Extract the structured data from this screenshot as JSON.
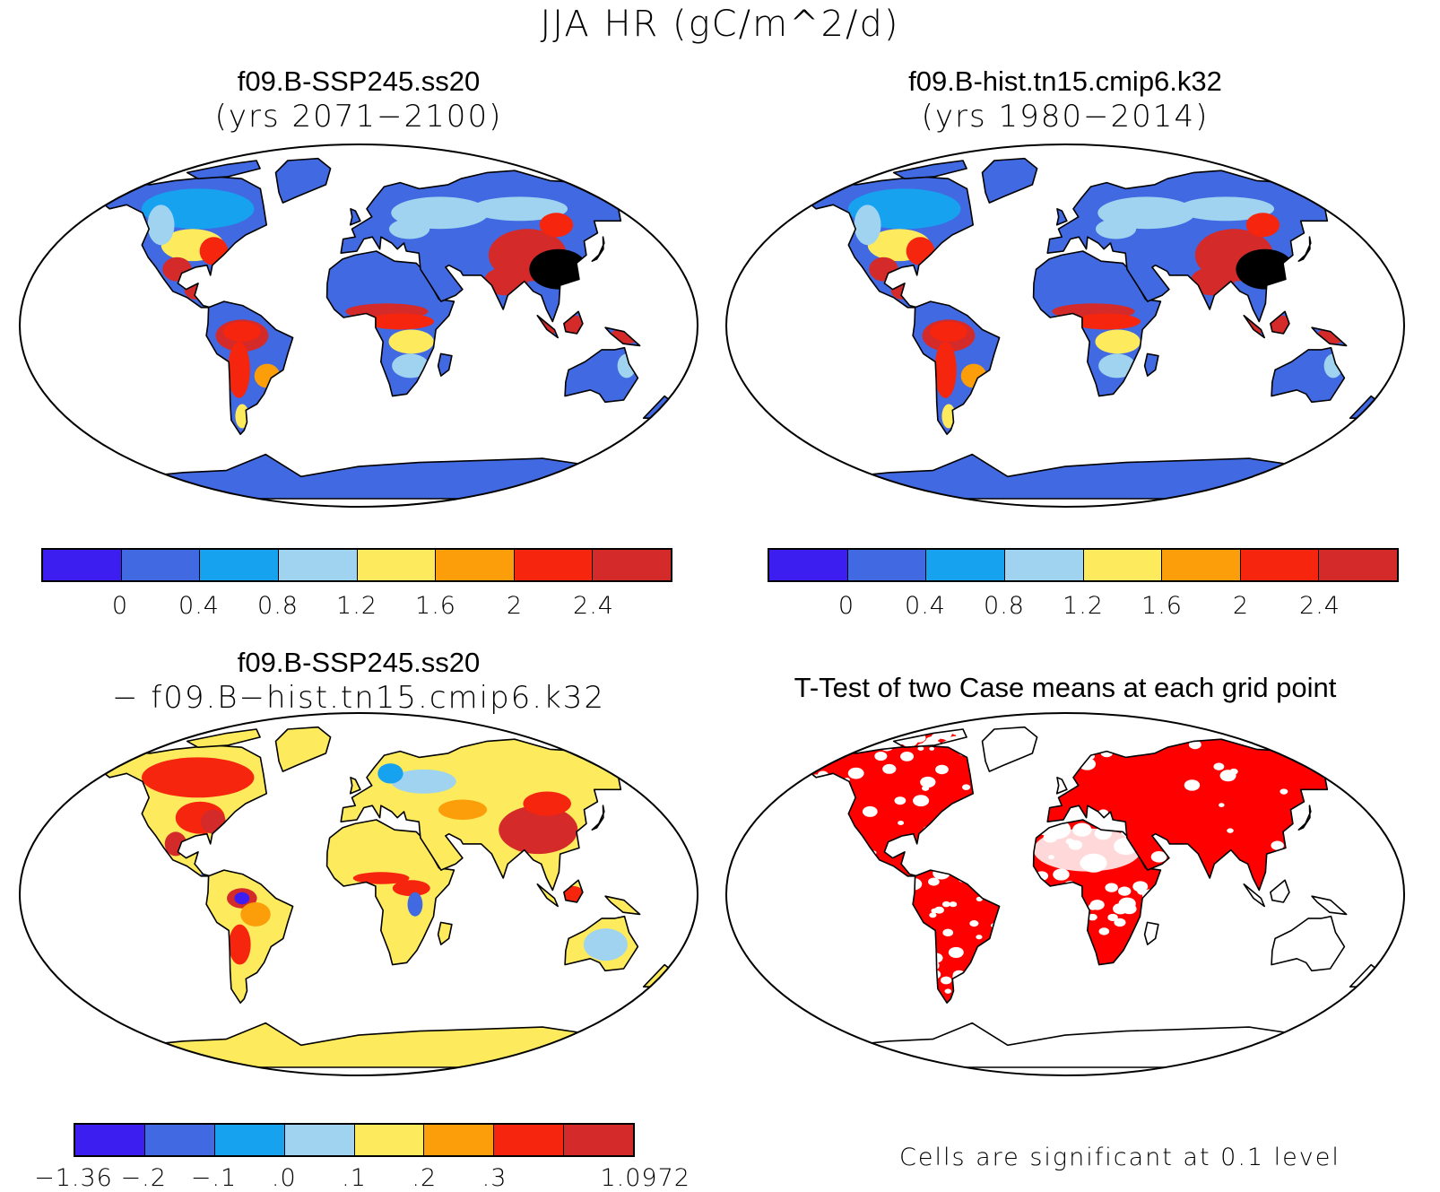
{
  "title": "JJA HR (gC/m^2/d)",
  "colors": {
    "c1": "#3c1ef0",
    "c2": "#4169e1",
    "c3": "#17a2f0",
    "c4": "#9fd3ef",
    "c5": "#fdeb5d",
    "c6": "#fb9e0a",
    "c7": "#f6250e",
    "c8": "#d42a2a",
    "ocean": "#ffffff",
    "sig": "#ff0000"
  },
  "panels": [
    {
      "id": "p1",
      "title1": "f09.B-SSP245.ss20",
      "title2": "(yrs 2071−2100)",
      "scheme": "abs",
      "ticks": [
        "0",
        "0.4",
        "0.8",
        "1.2",
        "1.6",
        "2",
        "2.4"
      ]
    },
    {
      "id": "p2",
      "title1": "f09.B-hist.tn15.cmip6.k32",
      "title2": "(yrs 1980−2014)",
      "scheme": "abs",
      "ticks": [
        "0",
        "0.4",
        "0.8",
        "1.2",
        "1.6",
        "2",
        "2.4"
      ]
    },
    {
      "id": "p3",
      "title1": "f09.B-SSP245.ss20",
      "title2": "− f09.B−hist.tn15.cmip6.k32",
      "scheme": "diff",
      "ticks": [
        "−1.36",
        "−.2",
        "−.1",
        ".0",
        ".1",
        ".2",
        ".3",
        "1.0972"
      ]
    },
    {
      "id": "p4",
      "title1": "T-Test of two Case means at each grid point",
      "title2": "",
      "scheme": "sig",
      "note": "Cells are significant at 0.1 level"
    }
  ]
}
